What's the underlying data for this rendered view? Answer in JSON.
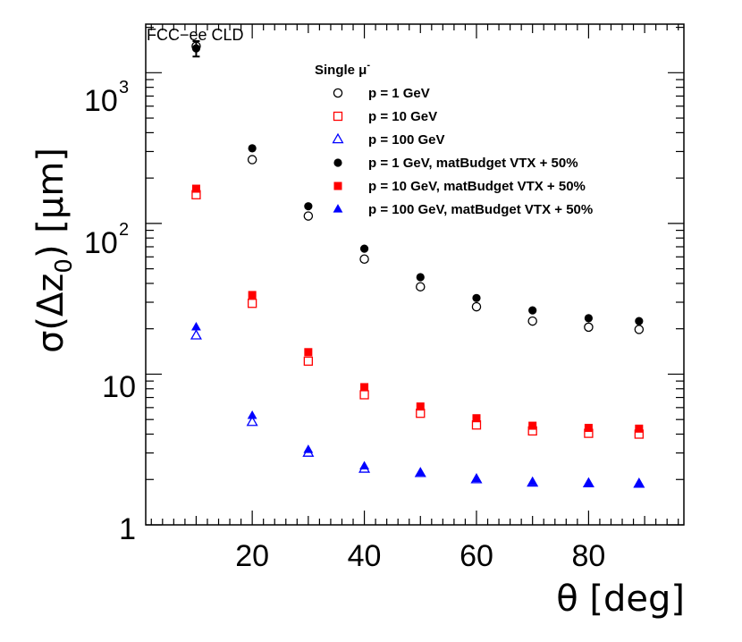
{
  "chart_data": {
    "type": "scatter",
    "title": "",
    "experiment_label": "FCC−ee CLD",
    "xlabel": "θ [deg]",
    "ylabel": {
      "sigma": "σ(",
      "delta": "Δ",
      "z": "z",
      "sub": "0",
      "close": ")",
      "unit": "[μm]"
    },
    "xlim": [
      1,
      97
    ],
    "ylim": [
      1,
      2100
    ],
    "yscale": "log",
    "x_ticks": [
      20,
      40,
      60,
      80
    ],
    "x_tick_labels": [
      "20",
      "40",
      "60",
      "80"
    ],
    "y_tick_labels": {
      "one": "1",
      "ten": "10",
      "hundred": {
        "base": "10",
        "exp": "2"
      },
      "thousand": {
        "base": "10",
        "exp": "3"
      }
    },
    "legend_title": {
      "main": "Single μ",
      "sup": "-"
    },
    "legend_position": "top-right",
    "series": [
      {
        "name": "p = 1 GeV",
        "color": "#000000",
        "marker": "circle-open",
        "x": [
          10,
          20,
          30,
          40,
          50,
          60,
          70,
          80,
          89
        ],
        "y": [
          1500,
          265,
          112,
          58,
          38,
          28,
          22.5,
          20.5,
          19.8
        ]
      },
      {
        "name": "p = 10 GeV",
        "color": "#ff0000",
        "marker": "square-open",
        "x": [
          10,
          20,
          30,
          40,
          50,
          60,
          70,
          80,
          89
        ],
        "y": [
          155,
          29.5,
          12.2,
          7.3,
          5.5,
          4.6,
          4.2,
          4.05,
          4.0
        ]
      },
      {
        "name": "p = 100 GeV",
        "color": "#0000ff",
        "marker": "triangle-open",
        "x": [
          10,
          20,
          30,
          40,
          50,
          60,
          70,
          80,
          89
        ],
        "y": [
          18,
          4.8,
          3.0,
          2.35,
          2.2,
          2.0,
          1.9,
          1.88,
          1.87
        ]
      },
      {
        "name": "p = 1 GeV, matBudget VTX + 50%",
        "color": "#000000",
        "marker": "circle-filled",
        "x": [
          10,
          20,
          30,
          40,
          50,
          60,
          70,
          80,
          89
        ],
        "y": [
          1450,
          315,
          130,
          68,
          44,
          32,
          26.5,
          23.5,
          22.5
        ],
        "errors": [
          170,
          0,
          0,
          0,
          0,
          0,
          0,
          0,
          0
        ]
      },
      {
        "name": "p = 10 GeV, matBudget VTX + 50%",
        "color": "#ff0000",
        "marker": "square-filled",
        "x": [
          10,
          20,
          30,
          40,
          50,
          60,
          70,
          80,
          89
        ],
        "y": [
          170,
          33.5,
          14,
          8.2,
          6.1,
          5.1,
          4.55,
          4.4,
          4.35
        ]
      },
      {
        "name": "p = 100 GeV, matBudget VTX + 50%",
        "color": "#0000ff",
        "marker": "triangle-filled",
        "x": [
          10,
          20,
          30,
          40,
          50,
          60,
          70,
          80,
          89
        ],
        "y": [
          20.5,
          5.3,
          3.15,
          2.45,
          2.22,
          2.02,
          1.92,
          1.88,
          1.87
        ]
      }
    ]
  }
}
